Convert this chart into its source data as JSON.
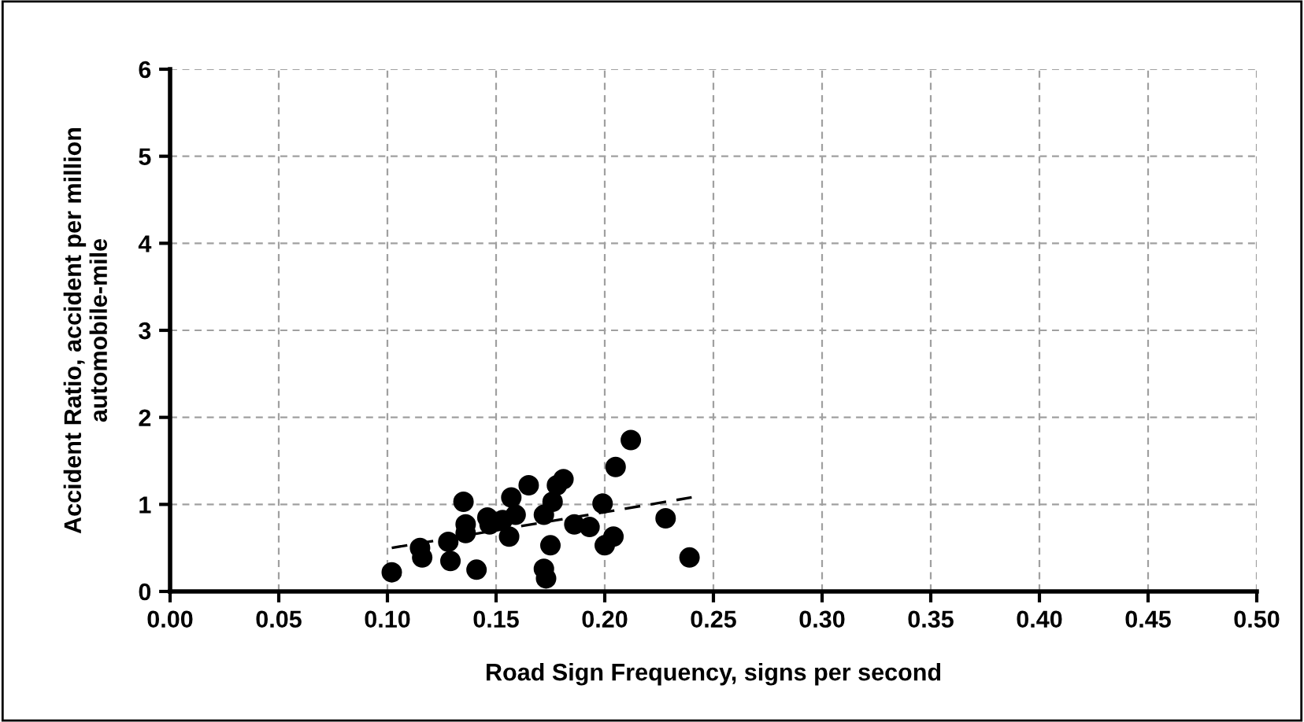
{
  "chart_data": {
    "type": "scatter",
    "xlabel": "Road Sign Frequency, signs per second",
    "ylabel": "Accident Ratio, accident per million\nautomobile-mile",
    "xlim": [
      0,
      0.5
    ],
    "xticks": [
      {
        "value": 0,
        "label": "0.00"
      },
      {
        "value": 0.05,
        "label": "0.05"
      },
      {
        "value": 0.1,
        "label": "0.10"
      },
      {
        "value": 0.15,
        "label": "0.15"
      },
      {
        "value": 0.2,
        "label": "0.20"
      },
      {
        "value": 0.25,
        "label": "0.25"
      },
      {
        "value": 0.3,
        "label": "0.30"
      },
      {
        "value": 0.35,
        "label": "0.35"
      },
      {
        "value": 0.4,
        "label": "0.40"
      },
      {
        "value": 0.45,
        "label": "0.45"
      },
      {
        "value": 0.5,
        "label": "0.50"
      }
    ],
    "ylim": [
      0,
      6
    ],
    "yticks": [
      0,
      1,
      2,
      3,
      4,
      5,
      6
    ],
    "grid": true,
    "series": [
      {
        "marker": "circle",
        "color": "#000000",
        "x": [
          0.102,
          0.115,
          0.116,
          0.128,
          0.129,
          0.135,
          0.136,
          0.136,
          0.141,
          0.146,
          0.147,
          0.153,
          0.156,
          0.157,
          0.159,
          0.165,
          0.172,
          0.172,
          0.173,
          0.175,
          0.176,
          0.178,
          0.181,
          0.186,
          0.193,
          0.199,
          0.2,
          0.204,
          0.205,
          0.212,
          0.228,
          0.239
        ],
        "values": [
          0.22,
          0.5,
          0.39,
          0.57,
          0.35,
          1.03,
          0.77,
          0.67,
          0.25,
          0.85,
          0.77,
          0.82,
          0.63,
          1.08,
          0.88,
          1.22,
          0.26,
          0.88,
          0.15,
          0.53,
          1.03,
          1.22,
          1.29,
          0.77,
          0.74,
          1.01,
          0.53,
          0.63,
          1.43,
          1.74,
          0.84,
          0.39
        ]
      },
      {
        "type": "line",
        "color": "#000000",
        "line_style": "dashed",
        "marker": "none",
        "x": [
          0.102,
          0.24
        ],
        "values": [
          0.5,
          1.08
        ]
      }
    ]
  }
}
